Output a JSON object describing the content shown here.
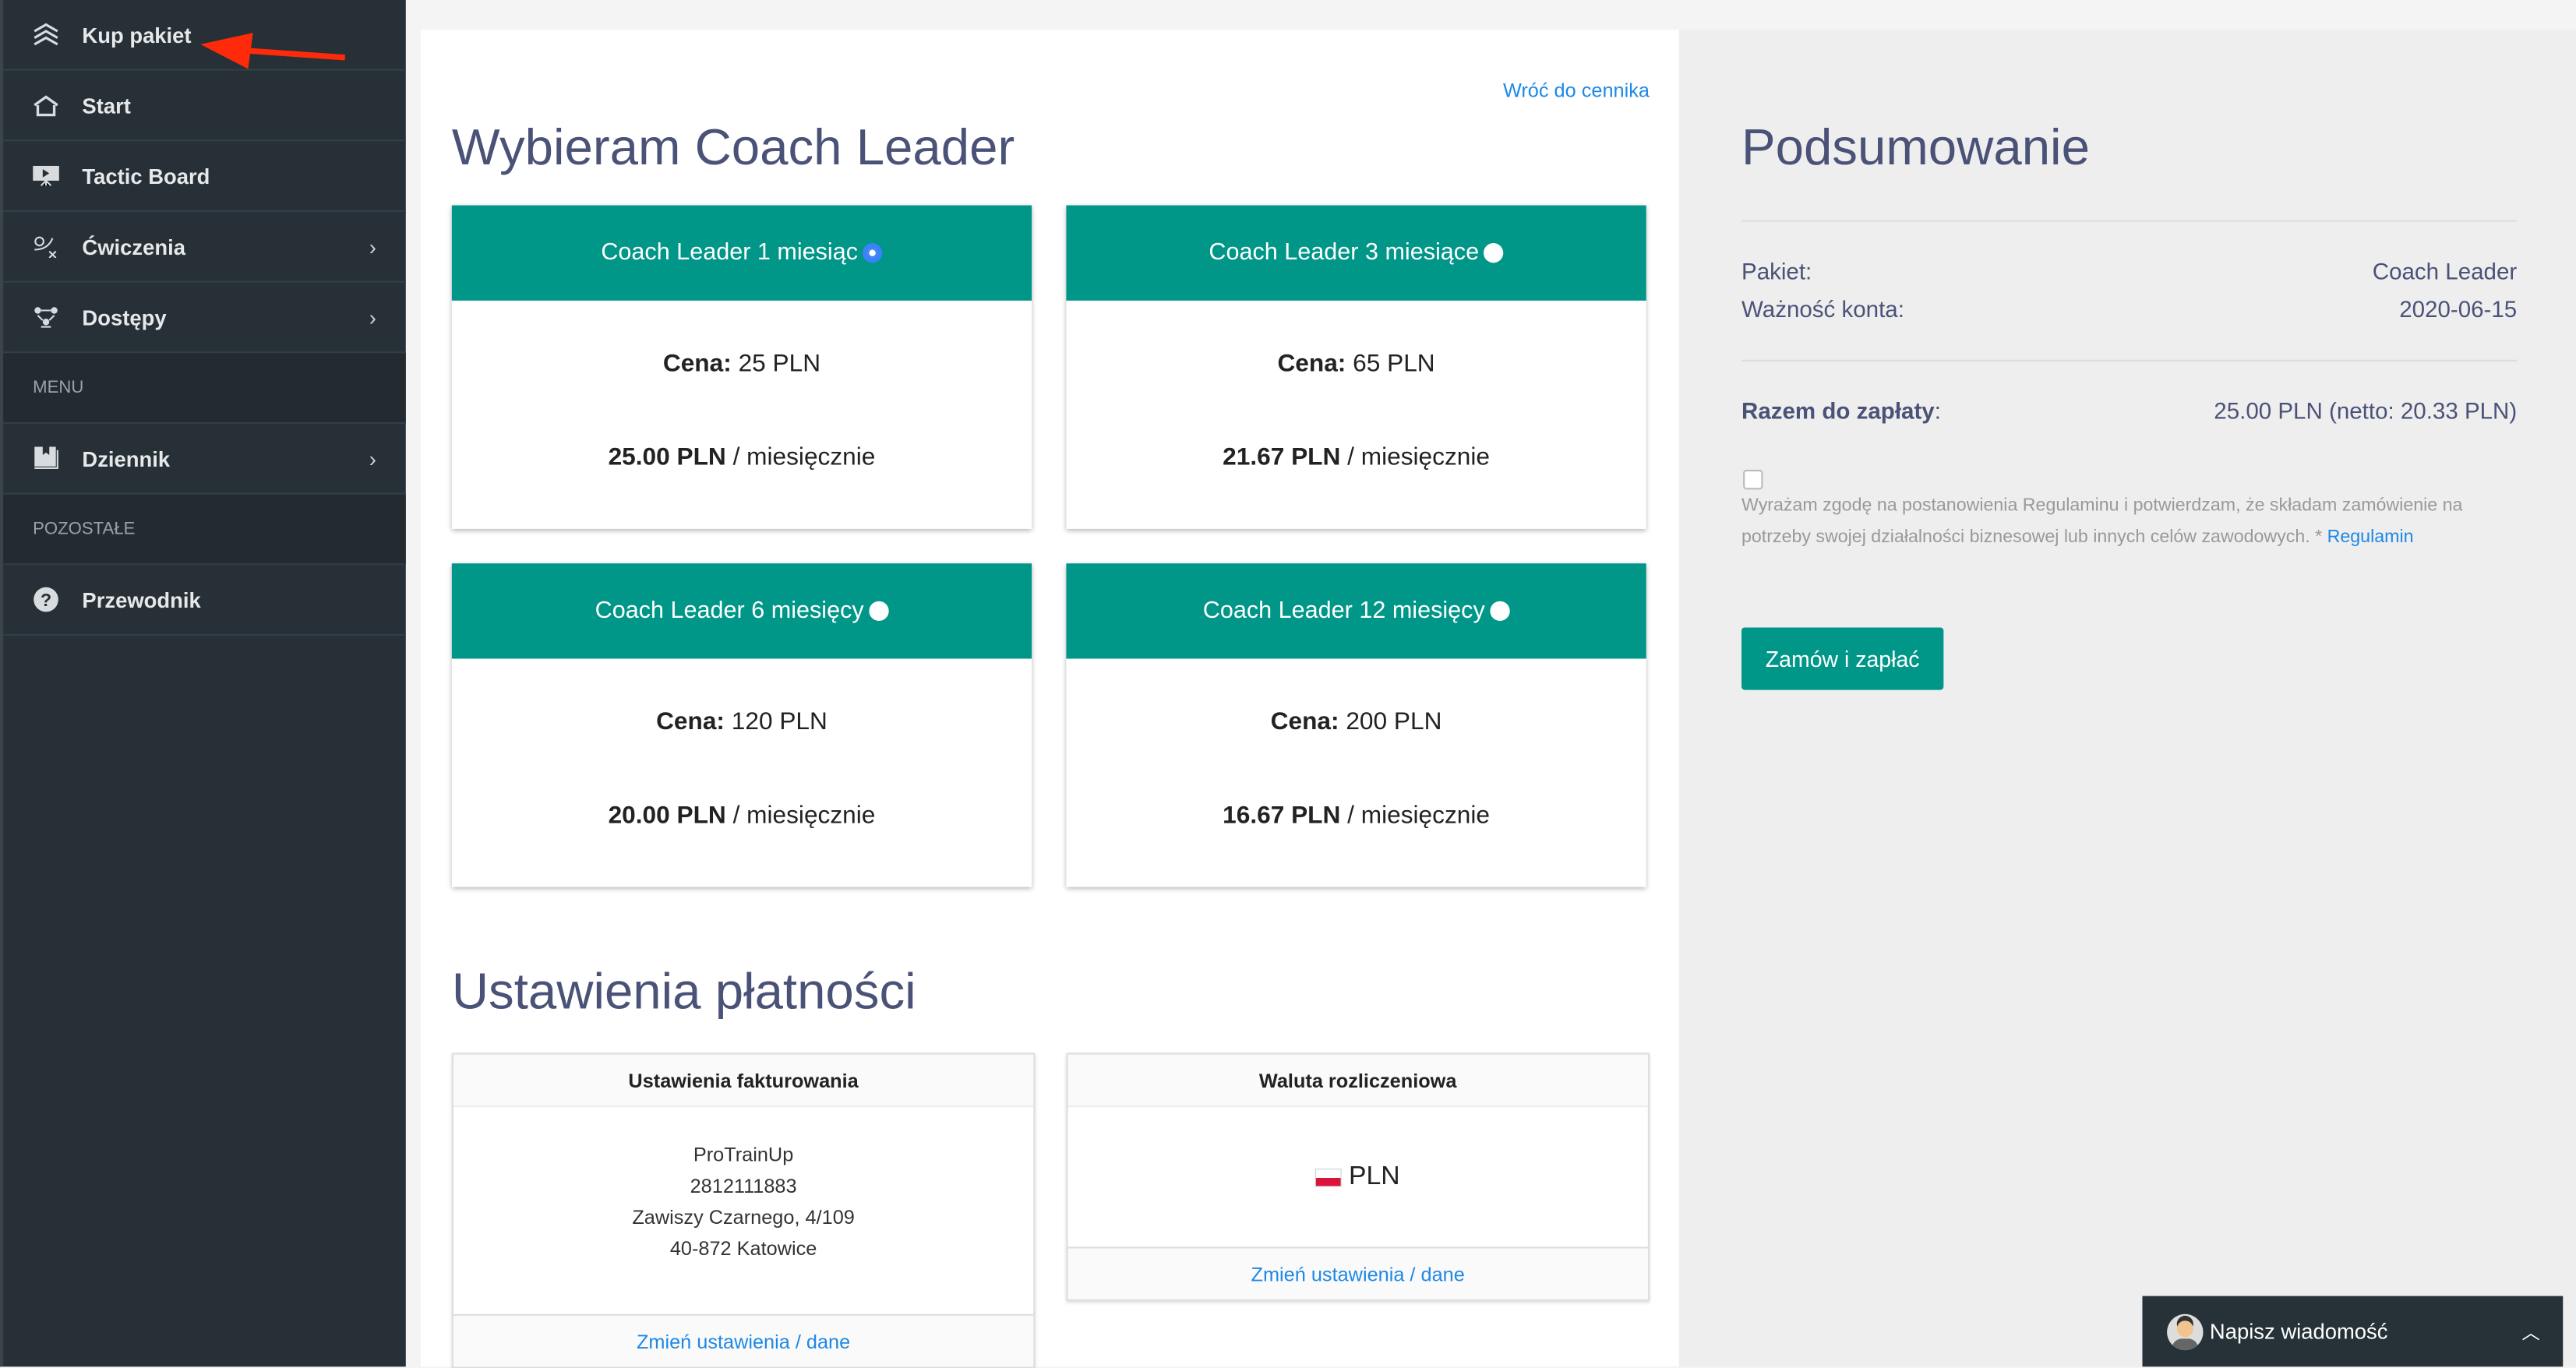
{
  "sidebar": {
    "items": [
      {
        "label": "Kup pakiet",
        "icon": "layers-icon"
      },
      {
        "label": "Start",
        "icon": "home-icon"
      },
      {
        "label": "Tactic Board",
        "icon": "presentation-icon"
      },
      {
        "label": "Ćwiczenia",
        "icon": "tactics-icon",
        "chevron": "›"
      },
      {
        "label": "Dostępy",
        "icon": "users-network-icon",
        "chevron": "›"
      }
    ],
    "section_menu": "MENU",
    "menu_items": [
      {
        "label": "Dziennik",
        "icon": "journal-icon",
        "chevron": "›"
      }
    ],
    "section_other": "POZOSTAŁE",
    "other_items": [
      {
        "label": "Przewodnik",
        "icon": "help-icon"
      }
    ],
    "annotation_arrow_color": "#ff2a0a"
  },
  "main": {
    "back_link": "Wróć do cennika",
    "title": "Wybieram Coach Leader",
    "plans": [
      {
        "name": "Coach Leader 1 miesiąc",
        "price_label": "Cena:",
        "price": " 25 PLN",
        "monthly": "25.00 PLN",
        "per": " / miesięcznie",
        "selected": true
      },
      {
        "name": "Coach Leader 3 miesiące",
        "price_label": "Cena:",
        "price": " 65 PLN",
        "monthly": "21.67 PLN",
        "per": " / miesięcznie",
        "selected": false
      },
      {
        "name": "Coach Leader 6 miesięcy",
        "price_label": "Cena:",
        "price": " 120 PLN",
        "monthly": "20.00 PLN",
        "per": " / miesięcznie",
        "selected": false
      },
      {
        "name": "Coach Leader 12 miesięcy",
        "price_label": "Cena:",
        "price": " 200 PLN",
        "monthly": "16.67 PLN",
        "per": " / miesięcznie",
        "selected": false
      }
    ],
    "payment_title": "Ustawienia płatności",
    "billing": {
      "title": "Ustawienia fakturowania",
      "lines": [
        "ProTrainUp",
        "2812111883",
        "Zawiszy Czarnego, 4/109",
        "40-872 Katowice"
      ],
      "link": "Zmień ustawienia / dane"
    },
    "currency": {
      "title": "Waluta rozliczeniowa",
      "value": "PLN",
      "link": "Zmień ustawienia / dane"
    }
  },
  "summary": {
    "title": "Podsumowanie",
    "package_label": "Pakiet:",
    "package_value": "Coach Leader",
    "validity_label": "Ważność konta:",
    "validity_value": "2020-06-15",
    "total_label": "Razem do zapłaty",
    "total_colon": ":",
    "total_value": "25.00 PLN (netto: 20.33 PLN)",
    "terms_text": "Wyrażam zgodę na postanowienia Regulaminu i potwierdzam, że składam zamówienie na potrzeby swojej działalności biznesowej lub innych celów zawodowych. * ",
    "terms_link": "Regulamin",
    "terms_checked": false,
    "order_button": "Zamów i zapłać"
  },
  "chat": {
    "label": "Napisz wiadomość"
  },
  "colors": {
    "accent": "#009688",
    "sidebar": "#263036",
    "link": "#1e88e5",
    "title": "#4b5278"
  }
}
